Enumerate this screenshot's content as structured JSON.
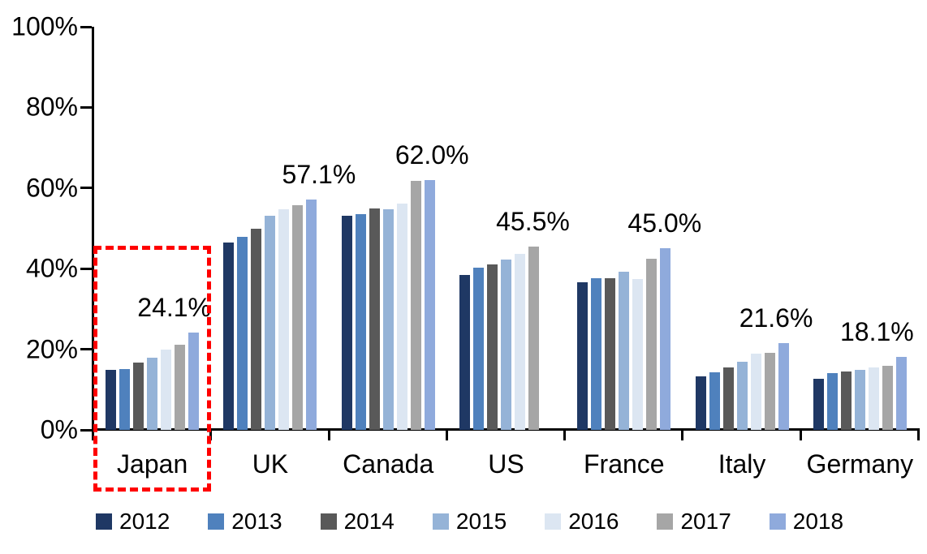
{
  "chart_data": {
    "type": "bar",
    "title": "",
    "categories": [
      "Japan",
      "UK",
      "Canada",
      "US",
      "France",
      "Italy",
      "Germany"
    ],
    "series": [
      {
        "name": "2012",
        "color": "#1F3864",
        "values": [
          14.9,
          46.4,
          53.1,
          38.4,
          36.6,
          13.3,
          12.6
        ]
      },
      {
        "name": "2013",
        "color": "#4F81BD",
        "values": [
          15.1,
          47.9,
          53.5,
          40.2,
          37.7,
          14.2,
          14.1
        ]
      },
      {
        "name": "2014",
        "color": "#595959",
        "values": [
          16.7,
          50.0,
          54.9,
          41.0,
          37.6,
          15.4,
          14.4
        ]
      },
      {
        "name": "2015",
        "color": "#95B3D7",
        "values": [
          18.0,
          53.2,
          54.7,
          42.2,
          39.2,
          17.0,
          14.8
        ]
      },
      {
        "name": "2016",
        "color": "#DCE6F2",
        "values": [
          19.9,
          54.8,
          56.2,
          43.6,
          37.4,
          18.9,
          15.4
        ]
      },
      {
        "name": "2017",
        "color": "#A6A6A6",
        "values": [
          21.1,
          55.8,
          61.7,
          45.5,
          42.4,
          19.2,
          15.9
        ]
      },
      {
        "name": "2018",
        "color": "#8FAADC",
        "values": [
          24.1,
          57.1,
          62.0,
          null,
          45.0,
          21.6,
          18.1
        ]
      }
    ],
    "data_labels": [
      "24.1%",
      "57.1%",
      "62.0%",
      "45.5%",
      "45.0%",
      "21.6%",
      "18.1%"
    ],
    "data_label_dx": [
      27,
      60,
      54,
      33,
      50,
      42,
      21
    ],
    "y_axis": {
      "min": 0,
      "max": 100,
      "ticks": [
        "100%",
        "80%",
        "60%",
        "40%",
        "20%",
        "0%"
      ]
    },
    "grid": false,
    "legend_position": "bottom",
    "highlight": {
      "category": "Japan",
      "color": "#FF0000",
      "style": "dashed"
    }
  }
}
